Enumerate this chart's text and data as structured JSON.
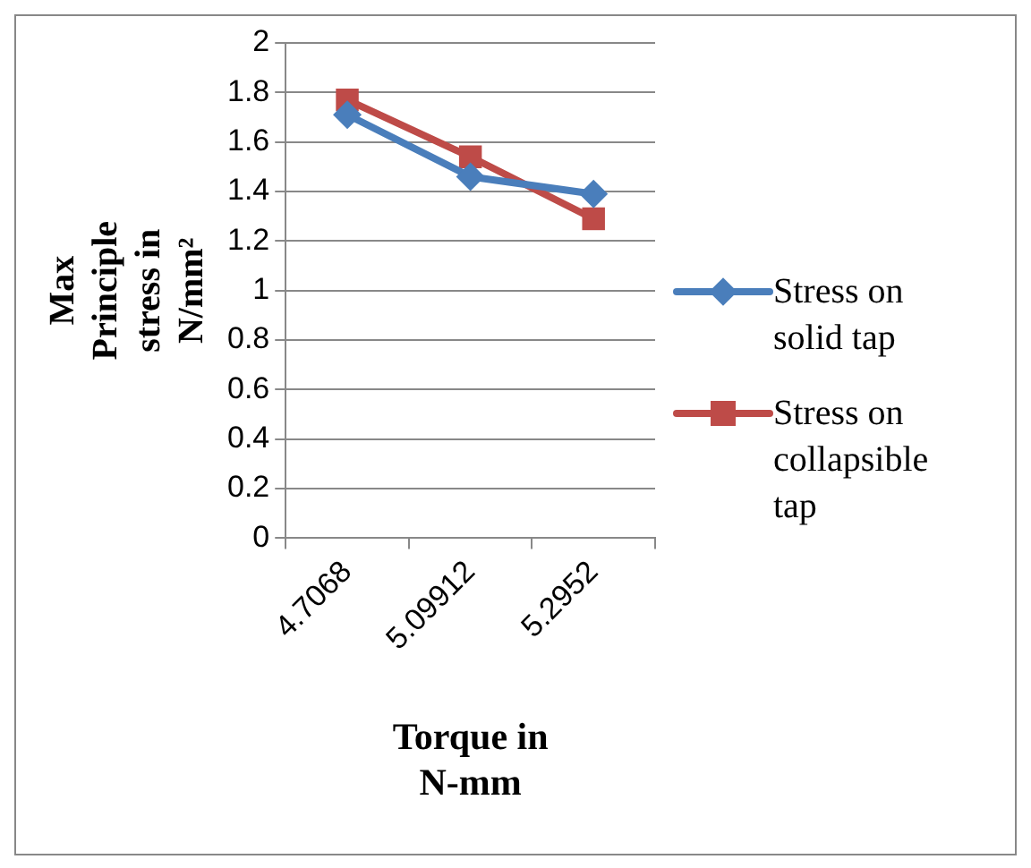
{
  "chart_data": {
    "type": "line",
    "xlabel": "Torque in N-mm",
    "ylabel": "Max Principle stress in N/mm²",
    "categories": [
      "4.7068",
      "5.09912",
      "5.2952"
    ],
    "series": [
      {
        "name": "Stress on solid tap",
        "color": "#4a7ebb",
        "marker": "diamond",
        "values": [
          1.71,
          1.46,
          1.39
        ]
      },
      {
        "name": "Stress on collapsible tap",
        "color": "#be4b48",
        "marker": "square",
        "values": [
          1.77,
          1.54,
          1.29
        ]
      }
    ],
    "ylim": [
      0,
      2
    ],
    "yticks": [
      0,
      0.2,
      0.4,
      0.6,
      0.8,
      1,
      1.2,
      1.4,
      1.6,
      1.8,
      2
    ],
    "grid": "y",
    "legend": "right"
  }
}
